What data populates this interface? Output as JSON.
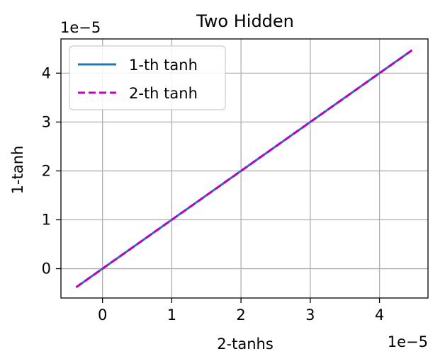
{
  "chart_data": {
    "type": "line",
    "title": "Two Hidden",
    "xlabel": "2-tanhs",
    "ylabel": "1-tanh",
    "x_offset_text": "1e−5",
    "y_offset_text": "1e−5",
    "xlim": [
      -0.6,
      4.7
    ],
    "ylim": [
      -0.6,
      4.7
    ],
    "xticks": [
      0,
      1,
      2,
      3,
      4
    ],
    "yticks": [
      0,
      1,
      2,
      3,
      4
    ],
    "xtick_labels": [
      "0",
      "1",
      "2",
      "3",
      "4"
    ],
    "ytick_labels": [
      "0",
      "1",
      "2",
      "3",
      "4"
    ],
    "grid": true,
    "legend_position": "upper-left",
    "series": [
      {
        "name": "1-th tanh",
        "color": "#1f77b4",
        "style": "solid",
        "x": [
          -0.38,
          4.47
        ],
        "y": [
          -0.38,
          4.47
        ]
      },
      {
        "name": "2-th tanh",
        "color": "#c000c0",
        "style": "dashed",
        "x": [
          -0.38,
          4.47
        ],
        "y": [
          -0.38,
          4.47
        ]
      }
    ]
  }
}
